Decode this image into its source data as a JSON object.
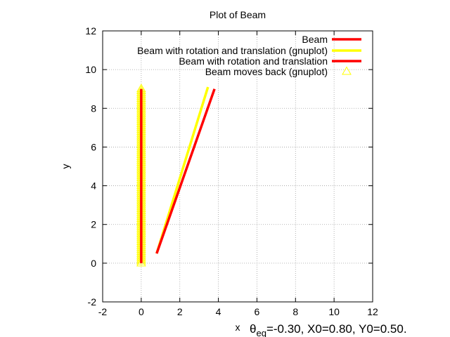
{
  "chart_data": {
    "type": "line",
    "title": "Plot of Beam",
    "xlabel": "x",
    "ylabel": "y",
    "xlim": [
      -2,
      12
    ],
    "ylim": [
      -2,
      12
    ],
    "xticks": [
      "-2",
      "0",
      "2",
      "4",
      "6",
      "8",
      "10",
      "12"
    ],
    "yticks": [
      "-2",
      "0",
      "2",
      "4",
      "6",
      "8",
      "10",
      "12"
    ],
    "grid": true,
    "legend_position": "top-right",
    "annotation": {
      "theta": "θ",
      "sub": "eq",
      "rest": "=-0.30, X0=0.80, Y0=0.50."
    },
    "series": [
      {
        "name": "Beam",
        "style": "line",
        "color": "#ff0000",
        "x": [
          0,
          0
        ],
        "y": [
          0,
          9
        ]
      },
      {
        "name": "Beam with rotation and translation (gnuplot)",
        "style": "line",
        "color": "#ffff00",
        "x": [
          0.8,
          3.46
        ],
        "y": [
          0.5,
          9.1
        ]
      },
      {
        "name": "Beam with rotation and translation",
        "style": "line",
        "color": "#ff0000",
        "x": [
          0.8,
          3.8
        ],
        "y": [
          0.5,
          9.0
        ]
      },
      {
        "name": "Beam moves back (gnuplot)",
        "style": "triangles",
        "color": "#ffff00",
        "x": [
          0,
          0,
          0,
          0,
          0,
          0,
          0,
          0,
          0,
          0,
          0,
          0,
          0,
          0,
          0,
          0,
          0,
          0,
          0,
          0,
          0,
          0,
          0,
          0,
          0,
          0,
          0,
          0,
          0,
          0,
          0,
          0,
          0,
          0,
          0,
          0,
          0,
          0,
          0,
          0,
          0,
          0,
          0,
          0,
          0,
          0,
          0,
          0,
          0,
          0,
          0,
          0,
          0,
          0,
          0,
          0,
          0,
          0,
          0,
          0,
          0,
          0,
          0,
          0,
          0,
          0,
          0,
          0,
          0,
          0,
          0,
          0,
          0,
          0,
          0,
          0,
          0,
          0,
          0,
          0,
          0,
          0,
          0,
          0,
          0,
          0,
          0,
          0,
          0,
          0,
          0
        ],
        "y": [
          0,
          0.1,
          0.2,
          0.3,
          0.4,
          0.5,
          0.6,
          0.7,
          0.8,
          0.9,
          1.0,
          1.1,
          1.2,
          1.3,
          1.4,
          1.5,
          1.6,
          1.7,
          1.8,
          1.9,
          2.0,
          2.1,
          2.2,
          2.3,
          2.4,
          2.5,
          2.6,
          2.7,
          2.8,
          2.9,
          3.0,
          3.1,
          3.2,
          3.3,
          3.4,
          3.5,
          3.6,
          3.7,
          3.8,
          3.9,
          4.0,
          4.1,
          4.2,
          4.3,
          4.4,
          4.5,
          4.6,
          4.7,
          4.8,
          4.9,
          5.0,
          5.1,
          5.2,
          5.3,
          5.4,
          5.5,
          5.6,
          5.7,
          5.8,
          5.9,
          6.0,
          6.1,
          6.2,
          6.3,
          6.4,
          6.5,
          6.6,
          6.7,
          6.8,
          6.9,
          7.0,
          7.1,
          7.2,
          7.3,
          7.4,
          7.5,
          7.6,
          7.7,
          7.8,
          7.9,
          8.0,
          8.1,
          8.2,
          8.3,
          8.4,
          8.5,
          8.6,
          8.7,
          8.8,
          8.9,
          9.0
        ]
      }
    ]
  }
}
